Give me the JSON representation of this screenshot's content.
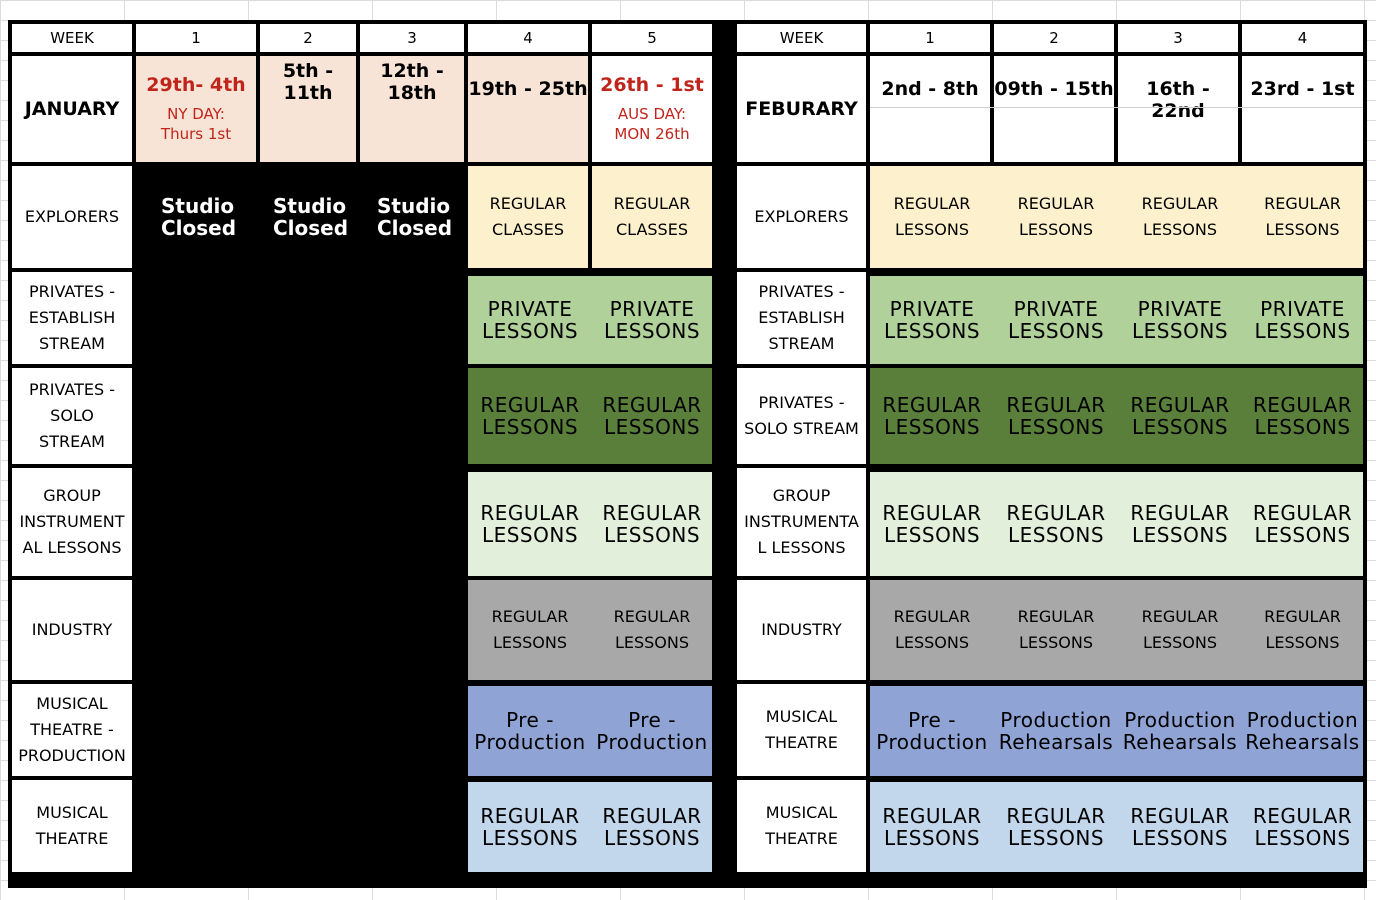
{
  "january": {
    "week_label": "WEEK",
    "weeks": [
      "1",
      "2",
      "3",
      "4",
      "5"
    ],
    "month": "JANUARY",
    "dates": [
      "29th- 4th",
      "5th - 11th",
      "12th - 18th",
      "19th - 25th",
      "26th - 1st"
    ],
    "notes": {
      "w1": "NY DAY: Thurs 1st",
      "w5": "AUS DAY: MON 26th"
    },
    "rows": [
      {
        "label": "EXPLORERS",
        "cells": [
          "Studio Closed",
          "Studio Closed",
          "Studio Closed",
          "REGULAR CLASSES",
          "REGULAR CLASSES"
        ]
      },
      {
        "label": "PRIVATES - ESTABLISH STREAM",
        "cells": [
          "",
          "",
          "",
          "PRIVATE LESSONS",
          "PRIVATE LESSONS"
        ]
      },
      {
        "label": "PRIVATES - SOLO STREAM",
        "cells": [
          "",
          "",
          "",
          "REGULAR LESSONS",
          "REGULAR LESSONS"
        ]
      },
      {
        "label": "GROUP INSTRUMENT AL LESSONS",
        "cells": [
          "",
          "",
          "",
          "REGULAR LESSONS",
          "REGULAR LESSONS"
        ]
      },
      {
        "label": "INDUSTRY",
        "cells": [
          "",
          "",
          "",
          "REGULAR LESSONS",
          "REGULAR LESSONS"
        ]
      },
      {
        "label": "MUSICAL THEATRE - PRODUCTION",
        "cells": [
          "",
          "",
          "",
          "Pre - Production",
          "Pre - Production"
        ]
      },
      {
        "label": "MUSICAL THEATRE",
        "cells": [
          "",
          "",
          "",
          "REGULAR LESSONS",
          "REGULAR LESSONS"
        ]
      }
    ]
  },
  "february": {
    "week_label": "WEEK",
    "weeks": [
      "1",
      "2",
      "3",
      "4"
    ],
    "month": "FEBURARY",
    "dates": [
      "2nd - 8th",
      "09th - 15th",
      "16th - 22nd",
      "23rd - 1st"
    ],
    "rows": [
      {
        "label": "EXPLORERS",
        "cells": [
          "REGULAR LESSONS",
          "REGULAR LESSONS",
          "REGULAR LESSONS",
          "REGULAR LESSONS"
        ]
      },
      {
        "label": "PRIVATES - ESTABLISH STREAM",
        "cells": [
          "PRIVATE LESSONS",
          "PRIVATE LESSONS",
          "PRIVATE LESSONS",
          "PRIVATE LESSONS"
        ]
      },
      {
        "label": "PRIVATES - SOLO STREAM",
        "cells": [
          "REGULAR LESSONS",
          "REGULAR LESSONS",
          "REGULAR LESSONS",
          "REGULAR LESSONS"
        ]
      },
      {
        "label": "GROUP INSTRUMENTA L LESSONS",
        "cells": [
          "REGULAR LESSONS",
          "REGULAR LESSONS",
          "REGULAR LESSONS",
          "REGULAR LESSONS"
        ]
      },
      {
        "label": "INDUSTRY",
        "cells": [
          "REGULAR LESSONS",
          "REGULAR LESSONS",
          "REGULAR LESSONS",
          "REGULAR LESSONS"
        ]
      },
      {
        "label": "MUSICAL THEATRE",
        "cells": [
          "Pre - Production",
          "Production Rehearsals",
          "Production Rehearsals",
          "Production Rehearsals"
        ]
      },
      {
        "label": "MUSICAL THEATRE",
        "cells": [
          "REGULAR LESSONS",
          "REGULAR LESSONS",
          "REGULAR LESSONS",
          "REGULAR LESSONS"
        ]
      }
    ]
  },
  "colors": {
    "peach": "#f8e4d7",
    "cream": "#fcf1cc",
    "light_green": "#b0d199",
    "dark_green": "#5a7f3b",
    "pale_green": "#e1efdb",
    "grey": "#a8a8a8",
    "purple": "#8fa3d5",
    "light_blue": "#c3d7ec",
    "holiday_red": "#c0251b"
  }
}
